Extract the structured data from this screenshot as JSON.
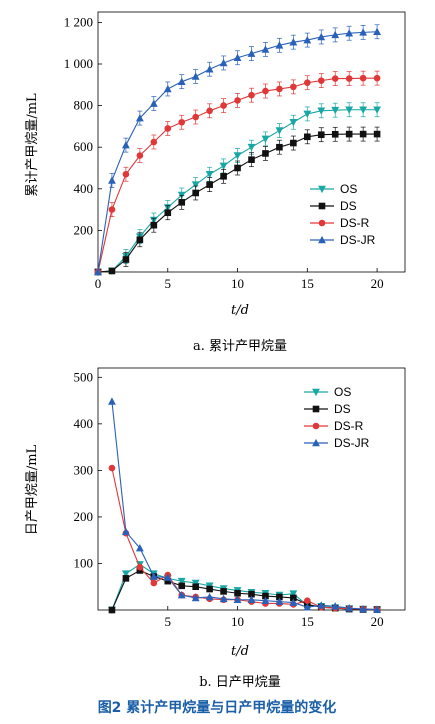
{
  "figure_title": "图2   累计产甲烷量与日产甲烷量的变化",
  "chart_data": [
    {
      "type": "line",
      "caption": "a. 累计产甲烷量",
      "xlabel": "t/d",
      "ylabel": "累计产甲烷量/mL",
      "xlim": [
        0,
        22
      ],
      "ylim": [
        0,
        1250
      ],
      "xticks": [
        0,
        5,
        10,
        15,
        20
      ],
      "yticks": [
        200,
        400,
        600,
        800,
        1000,
        1200
      ],
      "xtick_labels": [
        "0",
        "5",
        "10",
        "15",
        "20"
      ],
      "ytick_labels": [
        "200",
        "400",
        "600",
        "800",
        "1 000",
        "1 200"
      ],
      "legend_position": "center-right",
      "x": [
        0,
        1,
        2,
        3,
        4,
        5,
        6,
        7,
        8,
        9,
        10,
        11,
        12,
        13,
        14,
        15,
        16,
        17,
        18,
        19,
        20
      ],
      "series": [
        {
          "name": "OS",
          "color": "#19a7a5",
          "marker": "tri-down",
          "values": [
            0,
            5,
            75,
            170,
            250,
            310,
            370,
            420,
            470,
            510,
            560,
            600,
            640,
            680,
            720,
            760,
            775,
            778,
            780,
            780,
            780
          ]
        },
        {
          "name": "DS",
          "color": "#111111",
          "marker": "square",
          "values": [
            0,
            5,
            60,
            155,
            225,
            285,
            335,
            380,
            420,
            460,
            500,
            540,
            570,
            600,
            620,
            650,
            660,
            662,
            663,
            663,
            663
          ]
        },
        {
          "name": "DS-R",
          "color": "#e03838",
          "marker": "circle",
          "values": [
            0,
            300,
            470,
            560,
            625,
            690,
            720,
            745,
            775,
            800,
            825,
            850,
            870,
            880,
            890,
            910,
            920,
            930,
            930,
            932,
            932
          ]
        },
        {
          "name": "DS-JR",
          "color": "#2a61b8",
          "marker": "tri-up",
          "values": [
            0,
            440,
            610,
            740,
            810,
            880,
            915,
            940,
            975,
            1005,
            1030,
            1050,
            1070,
            1090,
            1105,
            1115,
            1130,
            1140,
            1148,
            1152,
            1155
          ]
        }
      ]
    },
    {
      "type": "line",
      "caption": "b. 日产甲烷量",
      "xlabel": "t/d",
      "ylabel": "日产甲烷量/mL",
      "xlim": [
        0,
        22
      ],
      "ylim": [
        0,
        520
      ],
      "xticks": [
        5,
        10,
        15,
        20
      ],
      "yticks": [
        100,
        200,
        300,
        400,
        500
      ],
      "xtick_labels": [
        "5",
        "10",
        "15",
        "20"
      ],
      "ytick_labels": [
        "100",
        "200",
        "300",
        "400",
        "500"
      ],
      "legend_position": "top-right",
      "x": [
        1,
        2,
        3,
        4,
        5,
        6,
        7,
        8,
        9,
        10,
        11,
        12,
        13,
        14,
        15,
        16,
        17,
        18,
        19,
        20
      ],
      "series": [
        {
          "name": "OS",
          "color": "#19a7a5",
          "marker": "tri-down",
          "values": [
            0,
            78,
            98,
            78,
            68,
            62,
            58,
            52,
            46,
            42,
            38,
            36,
            32,
            35,
            10,
            8,
            5,
            3,
            2,
            1
          ]
        },
        {
          "name": "DS",
          "color": "#111111",
          "marker": "square",
          "values": [
            0,
            68,
            85,
            72,
            62,
            52,
            50,
            45,
            40,
            36,
            34,
            30,
            28,
            26,
            12,
            6,
            4,
            2,
            1,
            1
          ]
        },
        {
          "name": "DS-R",
          "color": "#e03838",
          "marker": "circle",
          "values": [
            305,
            165,
            92,
            58,
            75,
            32,
            28,
            24,
            22,
            22,
            18,
            14,
            14,
            12,
            20,
            6,
            4,
            3,
            2,
            1
          ]
        },
        {
          "name": "DS-JR",
          "color": "#2a61b8",
          "marker": "tri-up",
          "values": [
            448,
            168,
            133,
            72,
            70,
            32,
            26,
            28,
            24,
            22,
            22,
            20,
            18,
            16,
            6,
            10,
            8,
            4,
            2,
            1
          ]
        }
      ]
    }
  ]
}
